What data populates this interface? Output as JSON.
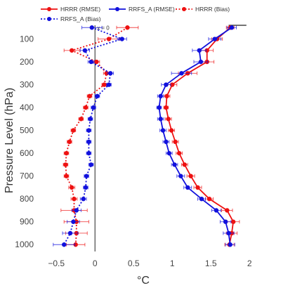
{
  "chart_data": {
    "type": "line",
    "xlabel": "°C",
    "ylabel": "Pressure Level (hPa)",
    "xlim": [
      -0.72,
      2.08
    ],
    "ylim": [
      40,
      1030
    ],
    "y_reversed": true,
    "x_ticks": [
      -0.5,
      0,
      0.5,
      1,
      1.5,
      2
    ],
    "x_tick_labels": [
      "−0.5",
      "0",
      "0.5",
      "1",
      "1.5",
      "2"
    ],
    "y_ticks": [
      100,
      200,
      300,
      400,
      500,
      600,
      700,
      800,
      900,
      1000
    ],
    "y_tick_labels": [
      "100",
      "200",
      "300",
      "400",
      "500",
      "600",
      "700",
      "800",
      "900",
      "1000"
    ],
    "grid": false,
    "zero_line": true,
    "annotation": "x = 0",
    "legend_position": "top",
    "levels": [
      50,
      100,
      150,
      200,
      250,
      300,
      350,
      400,
      450,
      500,
      550,
      600,
      650,
      700,
      750,
      800,
      850,
      900,
      950,
      1000
    ],
    "series": [
      {
        "name": "HRRR (RMSE)",
        "color": "#ee1111",
        "dash": "solid",
        "x": [
          1.75,
          1.58,
          1.45,
          1.45,
          1.2,
          1.0,
          0.93,
          0.92,
          0.95,
          0.99,
          1.04,
          1.09,
          1.16,
          1.24,
          1.33,
          1.48,
          1.71,
          1.79,
          1.77,
          1.74
        ],
        "err": [
          0.05,
          0.07,
          0.08,
          0.09,
          0.12,
          0.06,
          0.04,
          0.03,
          0.04,
          0.04,
          0.04,
          0.04,
          0.04,
          0.05,
          0.05,
          0.05,
          0.07,
          0.08,
          0.07,
          0.06
        ]
      },
      {
        "name": "RRFS_A (RMSE)",
        "color": "#1111dd",
        "dash": "solid",
        "x": [
          1.77,
          1.55,
          1.35,
          1.37,
          1.12,
          0.92,
          0.85,
          0.83,
          0.85,
          0.88,
          0.92,
          0.96,
          1.03,
          1.11,
          1.2,
          1.38,
          1.57,
          1.69,
          1.73,
          1.75
        ],
        "err": [
          0.06,
          0.08,
          0.09,
          0.09,
          0.13,
          0.06,
          0.04,
          0.03,
          0.04,
          0.04,
          0.04,
          0.04,
          0.04,
          0.05,
          0.05,
          0.05,
          0.06,
          0.07,
          0.07,
          0.06
        ]
      },
      {
        "name": "HRRR (Bias)",
        "color": "#ee1111",
        "dash": "dot",
        "x": [
          0.42,
          0.18,
          -0.3,
          0.02,
          0.15,
          0.12,
          -0.07,
          -0.12,
          -0.18,
          -0.28,
          -0.33,
          -0.37,
          -0.38,
          -0.37,
          -0.3,
          -0.27,
          -0.27,
          -0.24,
          -0.24,
          -0.25
        ],
        "err": [
          0.14,
          0.14,
          0.1,
          0.04,
          0.04,
          0.03,
          0.03,
          0.03,
          0.03,
          0.03,
          0.03,
          0.03,
          0.03,
          0.03,
          0.04,
          0.04,
          0.17,
          0.16,
          0.14,
          0.12
        ]
      },
      {
        "name": "RRFS_A (Bias)",
        "color": "#1111dd",
        "dash": "dot",
        "x": [
          -0.04,
          0.35,
          -0.13,
          -0.05,
          0.2,
          0.18,
          0.03,
          -0.02,
          -0.06,
          -0.08,
          -0.08,
          -0.08,
          -0.05,
          -0.11,
          -0.12,
          -0.15,
          -0.24,
          -0.28,
          -0.32,
          -0.4
        ],
        "err": [
          0.13,
          0.06,
          0.06,
          0.04,
          0.04,
          0.03,
          0.03,
          0.03,
          0.03,
          0.03,
          0.03,
          0.03,
          0.03,
          0.03,
          0.03,
          0.04,
          0.06,
          0.08,
          0.1,
          0.14
        ]
      }
    ]
  }
}
